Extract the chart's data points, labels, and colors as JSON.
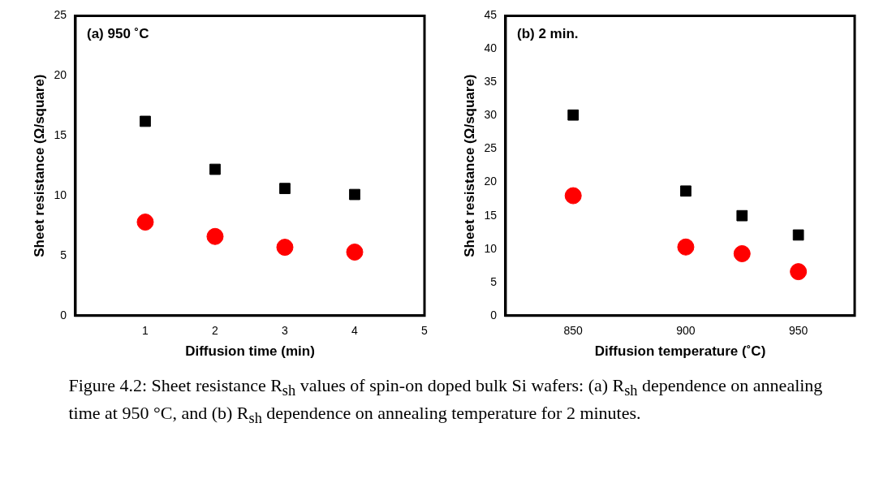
{
  "chart_data": [
    {
      "type": "scatter",
      "xlabel": "Diffusion time (min)",
      "ylabel": "Sheet resistance (Ω/square)",
      "xlim": [
        0,
        5
      ],
      "xticks": [
        1,
        2,
        3,
        4,
        5
      ],
      "ylim": [
        0,
        25
      ],
      "yticks": [
        0,
        5,
        10,
        15,
        20,
        25
      ],
      "grid": false,
      "legend": false,
      "annotations": [
        "(a) 950 ˚C",
        "Figure 4.2: Sheet resistance R$_{sh}$ values of spin-on doped bulk Si wafers: (a) R$_{sh}$ dependence on annealing time at 950 °C, and (b) R$_{sh}$ dependence on annealing temperature for 2 minutes."
      ],
      "series": [
        {
          "color": "#000000",
          "marker": "square",
          "x": [
            1,
            2,
            3,
            4
          ],
          "values": [
            16.2,
            12.2,
            10.6,
            10.1
          ]
        },
        {
          "color": "#ff0000",
          "marker": "circle",
          "x": [
            1,
            2,
            3,
            4
          ],
          "values": [
            7.8,
            6.6,
            5.7,
            5.3
          ]
        }
      ]
    },
    {
      "type": "scatter",
      "xlabel": "Diffusion temperature (˚C)",
      "ylabel": "Sheet resistance (Ω/square)",
      "xlim": [
        820,
        975
      ],
      "xticks": [
        850,
        900,
        950
      ],
      "ylim": [
        0,
        45
      ],
      "yticks": [
        0,
        5,
        10,
        15,
        20,
        25,
        30,
        35,
        40,
        45
      ],
      "grid": false,
      "legend": false,
      "annotations": [
        "(b) 2 min."
      ],
      "series": [
        {
          "color": "#000000",
          "marker": "square",
          "x": [
            850,
            900,
            925,
            950
          ],
          "values": [
            30.1,
            18.7,
            15,
            12.1
          ]
        },
        {
          "color": "#ff0000",
          "marker": "circle",
          "x": [
            850,
            900,
            925,
            950
          ],
          "values": [
            18,
            10.3,
            9.3,
            6.6
          ]
        }
      ]
    }
  ]
}
